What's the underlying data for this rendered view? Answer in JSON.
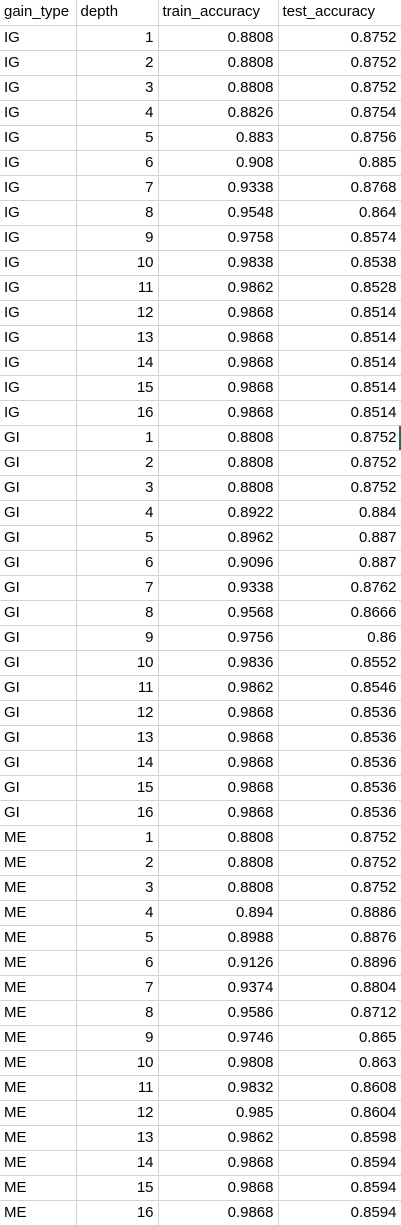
{
  "headers": [
    "gain_type",
    "depth",
    "train_accuracy",
    "test_accuracy"
  ],
  "rows": [
    [
      "IG",
      "1",
      "0.8808",
      "0.8752"
    ],
    [
      "IG",
      "2",
      "0.8808",
      "0.8752"
    ],
    [
      "IG",
      "3",
      "0.8808",
      "0.8752"
    ],
    [
      "IG",
      "4",
      "0.8826",
      "0.8754"
    ],
    [
      "IG",
      "5",
      "0.883",
      "0.8756"
    ],
    [
      "IG",
      "6",
      "0.908",
      "0.885"
    ],
    [
      "IG",
      "7",
      "0.9338",
      "0.8768"
    ],
    [
      "IG",
      "8",
      "0.9548",
      "0.864"
    ],
    [
      "IG",
      "9",
      "0.9758",
      "0.8574"
    ],
    [
      "IG",
      "10",
      "0.9838",
      "0.8538"
    ],
    [
      "IG",
      "11",
      "0.9862",
      "0.8528"
    ],
    [
      "IG",
      "12",
      "0.9868",
      "0.8514"
    ],
    [
      "IG",
      "13",
      "0.9868",
      "0.8514"
    ],
    [
      "IG",
      "14",
      "0.9868",
      "0.8514"
    ],
    [
      "IG",
      "15",
      "0.9868",
      "0.8514"
    ],
    [
      "IG",
      "16",
      "0.9868",
      "0.8514"
    ],
    [
      "GI",
      "1",
      "0.8808",
      "0.8752"
    ],
    [
      "GI",
      "2",
      "0.8808",
      "0.8752"
    ],
    [
      "GI",
      "3",
      "0.8808",
      "0.8752"
    ],
    [
      "GI",
      "4",
      "0.8922",
      "0.884"
    ],
    [
      "GI",
      "5",
      "0.8962",
      "0.887"
    ],
    [
      "GI",
      "6",
      "0.9096",
      "0.887"
    ],
    [
      "GI",
      "7",
      "0.9338",
      "0.8762"
    ],
    [
      "GI",
      "8",
      "0.9568",
      "0.8666"
    ],
    [
      "GI",
      "9",
      "0.9756",
      "0.86"
    ],
    [
      "GI",
      "10",
      "0.9836",
      "0.8552"
    ],
    [
      "GI",
      "11",
      "0.9862",
      "0.8546"
    ],
    [
      "GI",
      "12",
      "0.9868",
      "0.8536"
    ],
    [
      "GI",
      "13",
      "0.9868",
      "0.8536"
    ],
    [
      "GI",
      "14",
      "0.9868",
      "0.8536"
    ],
    [
      "GI",
      "15",
      "0.9868",
      "0.8536"
    ],
    [
      "GI",
      "16",
      "0.9868",
      "0.8536"
    ],
    [
      "ME",
      "1",
      "0.8808",
      "0.8752"
    ],
    [
      "ME",
      "2",
      "0.8808",
      "0.8752"
    ],
    [
      "ME",
      "3",
      "0.8808",
      "0.8752"
    ],
    [
      "ME",
      "4",
      "0.894",
      "0.8886"
    ],
    [
      "ME",
      "5",
      "0.8988",
      "0.8876"
    ],
    [
      "ME",
      "6",
      "0.9126",
      "0.8896"
    ],
    [
      "ME",
      "7",
      "0.9374",
      "0.8804"
    ],
    [
      "ME",
      "8",
      "0.9586",
      "0.8712"
    ],
    [
      "ME",
      "9",
      "0.9746",
      "0.865"
    ],
    [
      "ME",
      "10",
      "0.9808",
      "0.863"
    ],
    [
      "ME",
      "11",
      "0.9832",
      "0.8608"
    ],
    [
      "ME",
      "12",
      "0.985",
      "0.8604"
    ],
    [
      "ME",
      "13",
      "0.9862",
      "0.8598"
    ],
    [
      "ME",
      "14",
      "0.9868",
      "0.8594"
    ],
    [
      "ME",
      "15",
      "0.9868",
      "0.8594"
    ],
    [
      "ME",
      "16",
      "0.9868",
      "0.8594"
    ]
  ],
  "colors": {
    "gridline": "#d4d4d4",
    "selection_accent": "#217346"
  }
}
